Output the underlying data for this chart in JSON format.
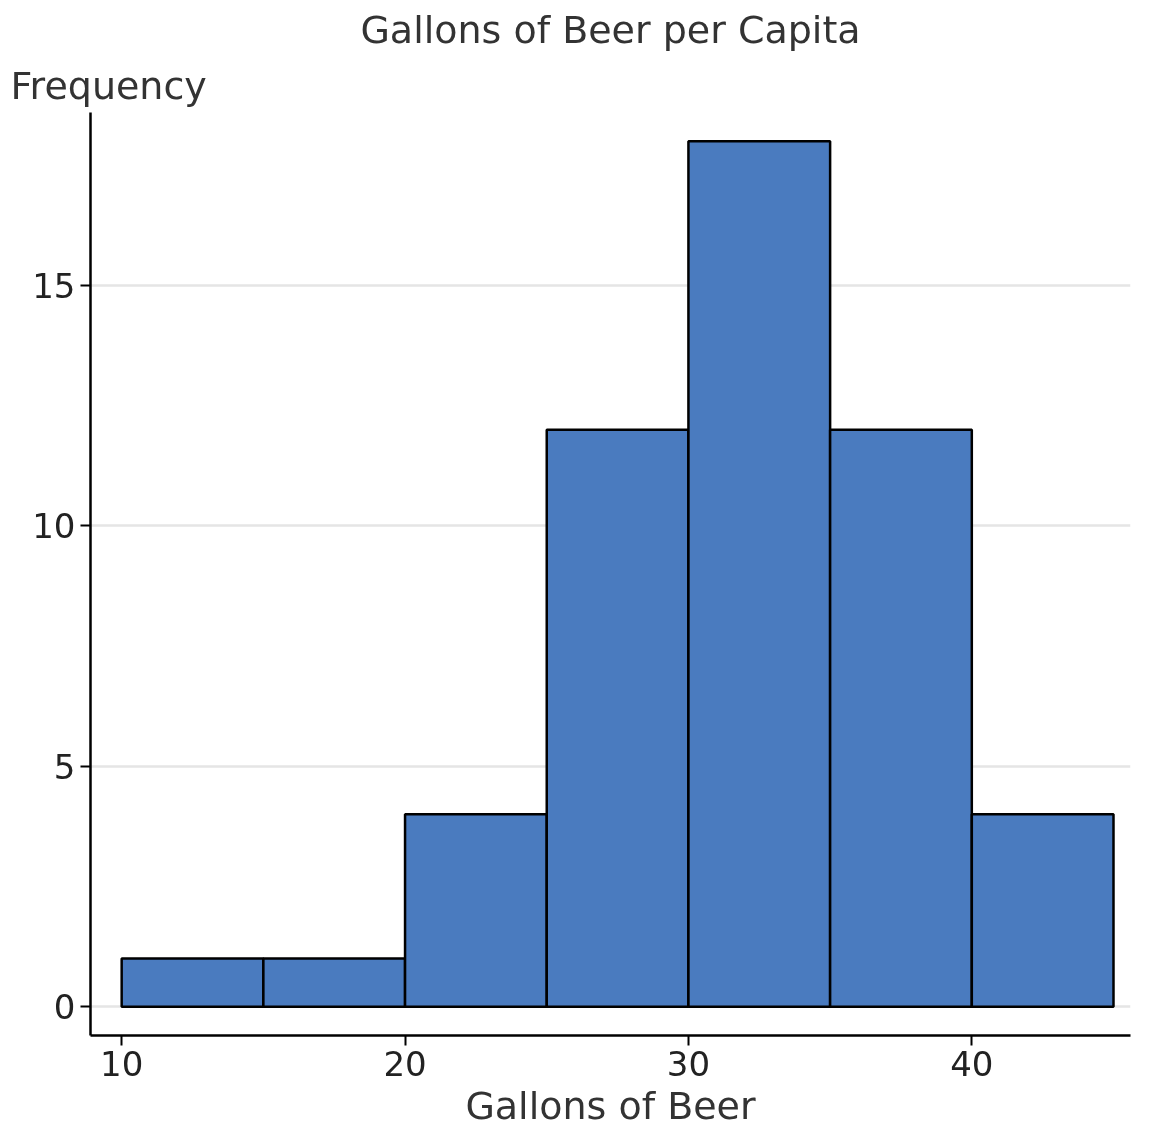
{
  "chart_data": {
    "type": "histogram",
    "title": "Gallons of Beer per Capita",
    "xlabel": "Gallons of Beer",
    "ylabel": "Frequency",
    "bins": [
      10,
      15,
      20,
      25,
      30,
      35,
      40,
      45
    ],
    "values": [
      1,
      1,
      4,
      12,
      18,
      12,
      4
    ],
    "color": "#4a7bbf",
    "xlim": [
      8.9,
      45.6
    ],
    "ylim": [
      -0.6,
      18.6
    ],
    "xticks": [
      10,
      20,
      30,
      40
    ],
    "yticks": [
      0,
      5,
      10,
      15
    ],
    "grid": "y"
  }
}
